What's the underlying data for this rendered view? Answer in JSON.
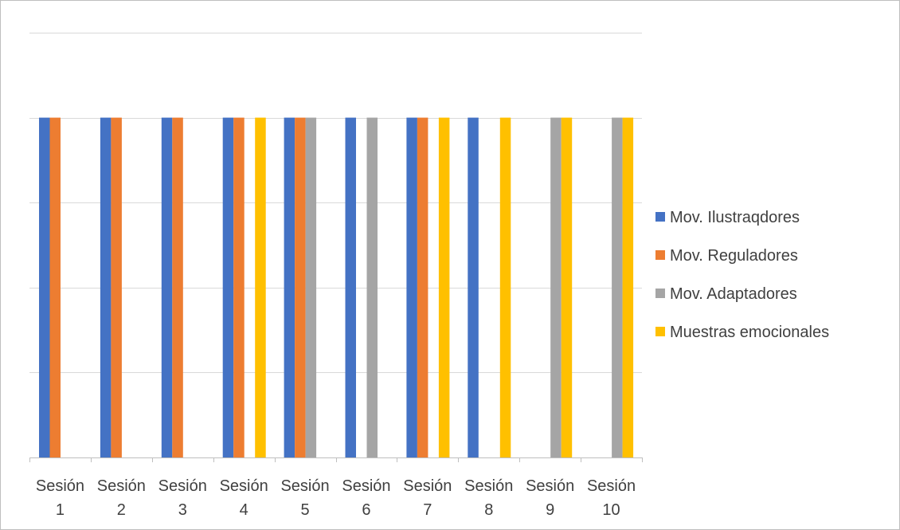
{
  "chart_data": {
    "type": "bar",
    "categories": [
      [
        "Sesión",
        "1"
      ],
      [
        "Sesión",
        "2"
      ],
      [
        "Sesión",
        "3"
      ],
      [
        "Sesión",
        "4"
      ],
      [
        "Sesión",
        "5"
      ],
      [
        "Sesión",
        "6"
      ],
      [
        "Sesión",
        "7"
      ],
      [
        "Sesión",
        "8"
      ],
      [
        "Sesión",
        "9"
      ],
      [
        "Sesión",
        "10"
      ]
    ],
    "series": [
      {
        "name": "Mov. Ilustraqdores",
        "color": "#4472C4",
        "values": [
          1,
          1,
          1,
          1,
          1,
          1,
          1,
          1,
          0,
          0
        ]
      },
      {
        "name": "Mov. Reguladores",
        "color": "#ED7D31",
        "values": [
          1,
          1,
          1,
          1,
          1,
          0,
          1,
          0,
          0,
          0
        ]
      },
      {
        "name": "Mov. Adaptadores",
        "color": "#A5A5A5",
        "values": [
          0,
          0,
          0,
          0,
          1,
          1,
          0,
          0,
          1,
          1
        ]
      },
      {
        "name": "Muestras emocionales",
        "color": "#FFC000",
        "values": [
          0,
          0,
          0,
          1,
          0,
          0,
          1,
          1,
          1,
          1
        ]
      }
    ],
    "ylim": [
      0,
      1.25
    ],
    "ygrid_step": 0.25,
    "show_y_tick_labels": false,
    "grid": true,
    "legend_position": "right",
    "title": "",
    "xlabel": "",
    "ylabel": ""
  }
}
